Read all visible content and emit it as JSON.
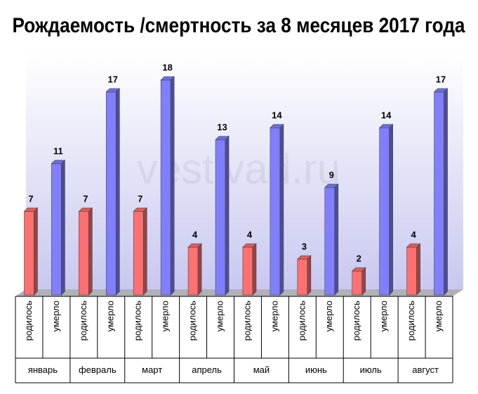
{
  "chart_data": {
    "type": "bar",
    "title": "Рождаемость /смертность за 8 месяцев 2017 года",
    "watermark": "vestivad.ru",
    "categories": [
      "январь",
      "февраль",
      "март",
      "апрель",
      "май",
      "июнь",
      "июль",
      "август"
    ],
    "series": [
      {
        "name": "родилось",
        "color": "#ff7070",
        "values": [
          7,
          7,
          7,
          4,
          4,
          3,
          2,
          4
        ]
      },
      {
        "name": "умерло",
        "color": "#8080ff",
        "values": [
          11,
          17,
          18,
          13,
          14,
          9,
          14,
          17
        ]
      }
    ],
    "ylim": [
      0,
      20
    ]
  }
}
